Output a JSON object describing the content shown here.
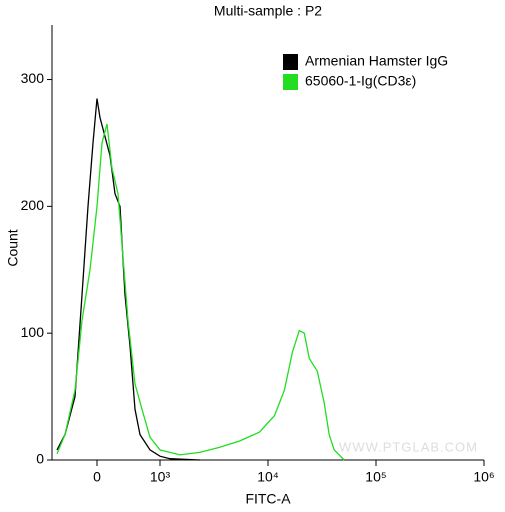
{
  "chart_data": {
    "type": "line",
    "title": "Multi-sample : P2",
    "x_label": "FITC-A",
    "y_label": "Count",
    "xscale": "biexponential",
    "legend": "upper right",
    "watermark": "WWW.PTGLAB.COM",
    "xlim": [
      -714,
      1000000
    ],
    "ylim": [
      0,
      343
    ],
    "xticks": [
      0,
      {
        "value": 1000,
        "label": "10³"
      },
      {
        "value": 10000,
        "label": "10⁴"
      },
      {
        "value": 100000,
        "label": "10⁵"
      },
      {
        "value": 1000000,
        "label": "10⁶"
      }
    ],
    "yticks": [
      0,
      100,
      200,
      300
    ],
    "series": [
      {
        "name": "Armenian Hamster IgG",
        "color": "#000000",
        "x": [
          -635,
          -508,
          -349,
          -238,
          -143,
          -63,
          0,
          48,
          127,
          206,
          286,
          365,
          444,
          524,
          603,
          683,
          841,
          1000,
          1236,
          2337
        ],
        "values": [
          8,
          20,
          50,
          130,
          200,
          250,
          285,
          270,
          255,
          240,
          210,
          200,
          130,
          90,
          40,
          20,
          8,
          3,
          1,
          0
        ]
      },
      {
        "name": "65060-1-Ig(CD3ε)",
        "color": "#22dd22",
        "x": [
          -635,
          -508,
          -349,
          -238,
          -111,
          0,
          79,
          159,
          238,
          333,
          413,
          492,
          603,
          714,
          841,
          1000,
          1529,
          2337,
          3573,
          5462,
          8350,
          11480,
          14200,
          16820,
          19510,
          21700,
          24130,
          28590,
          33170,
          36880,
          41020,
          50730
        ],
        "values": [
          5,
          20,
          55,
          110,
          150,
          200,
          250,
          265,
          230,
          210,
          160,
          110,
          60,
          40,
          18,
          8,
          4,
          6,
          10,
          15,
          22,
          35,
          55,
          85,
          102,
          100,
          80,
          70,
          45,
          20,
          8,
          0
        ]
      }
    ]
  }
}
